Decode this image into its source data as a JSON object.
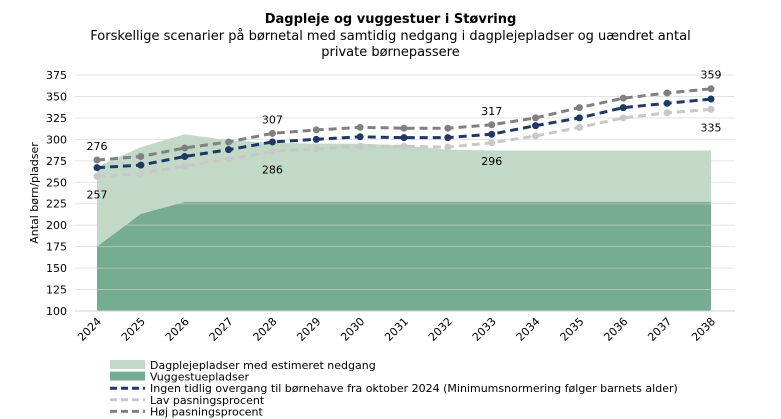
{
  "chart_data": {
    "type": "area+line",
    "title": "Dagpleje og vuggestuer i Støvring",
    "subtitle": "Forskellige scenarier på børnetal med samtidig nedgang i dagplejepladser og uændret antal private børnepassere",
    "ylabel": "Antal børn/pladser",
    "xlabel": "",
    "ylim": [
      100,
      375
    ],
    "yticks": [
      100,
      125,
      150,
      175,
      200,
      225,
      250,
      275,
      300,
      325,
      350,
      375
    ],
    "categories": [
      "2024",
      "2025",
      "2026",
      "2027",
      "2028",
      "2029",
      "2030",
      "2031",
      "2032",
      "2033",
      "2034",
      "2035",
      "2036",
      "2037",
      "2038"
    ],
    "grid": true,
    "legend": "bottom",
    "series": [
      {
        "name": "Dagplejepladser med estimeret nedgang",
        "kind": "area",
        "color": "#c2d9c8",
        "values": [
          268,
          291,
          306,
          299,
          296,
          295,
          295,
          293,
          288,
          287,
          287,
          287,
          287,
          287,
          287
        ]
      },
      {
        "name": "Vuggestuepladser",
        "kind": "area",
        "color": "#76ad92",
        "values": [
          175,
          213,
          227,
          227,
          227,
          227,
          227,
          227,
          227,
          227,
          227,
          227,
          227,
          227,
          227
        ]
      },
      {
        "name": "Ingen tidlig overgang til børnehave fra oktober 2024 (Minimumsnormering følger barnets alder)",
        "kind": "line",
        "color": "#1f3864",
        "values": [
          267,
          270,
          280,
          288,
          297,
          300,
          303,
          302,
          302,
          306,
          316,
          325,
          337,
          342,
          347
        ]
      },
      {
        "name": "Lav pasningsprocent",
        "kind": "line",
        "color": "#c8c8c8",
        "values": [
          257,
          260,
          269,
          277,
          286,
          289,
          292,
          292,
          291,
          296,
          304,
          314,
          325,
          331,
          335
        ]
      },
      {
        "name": "Høj pasningsprocent",
        "kind": "line",
        "color": "#808080",
        "values": [
          276,
          280,
          290,
          297,
          307,
          311,
          314,
          313,
          313,
          317,
          325,
          337,
          348,
          354,
          359
        ]
      }
    ],
    "data_labels": [
      {
        "series": 4,
        "index": 0,
        "text": "276",
        "pos": "above"
      },
      {
        "series": 3,
        "index": 0,
        "text": "257",
        "pos": "below"
      },
      {
        "series": 4,
        "index": 4,
        "text": "307",
        "pos": "above"
      },
      {
        "series": 3,
        "index": 4,
        "text": "286",
        "pos": "below"
      },
      {
        "series": 4,
        "index": 9,
        "text": "317",
        "pos": "above"
      },
      {
        "series": 3,
        "index": 9,
        "text": "296",
        "pos": "below"
      },
      {
        "series": 4,
        "index": 14,
        "text": "359",
        "pos": "above"
      },
      {
        "series": 3,
        "index": 14,
        "text": "335",
        "pos": "below"
      }
    ]
  }
}
